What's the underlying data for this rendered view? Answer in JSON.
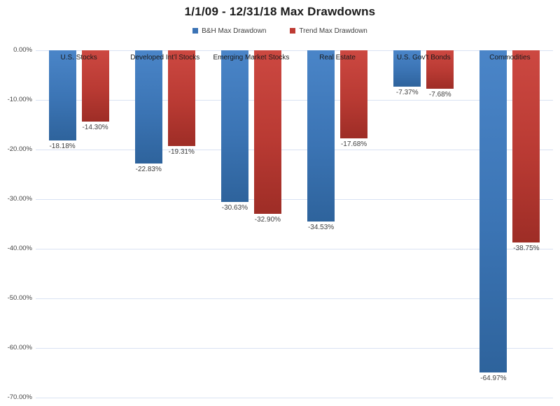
{
  "title": "1/1/09 - 12/31/18 Max Drawdowns",
  "legend": [
    {
      "label": "B&H Max Drawdown",
      "color": "#3b73b5"
    },
    {
      "label": "Trend Max Drawdown",
      "color": "#be3b33"
    }
  ],
  "colors": {
    "blue_top": "#4a85c8",
    "blue_bottom": "#2e639c",
    "red_top": "#cc4841",
    "red_bottom": "#9e2d26",
    "gridline": "#d9e2f3",
    "label_text": "#404040"
  },
  "chart_data": {
    "type": "bar",
    "title": "1/1/09 - 12/31/18 Max Drawdowns",
    "categories": [
      "U.S. Stocks",
      "Developed Int’l Stocks",
      "Emerging Market Stocks",
      "Real Estate",
      "U.S. Gov’t Bonds",
      "Commodities"
    ],
    "series": [
      {
        "name": "B&H Max Drawdown",
        "values": [
          -18.18,
          -22.83,
          -30.63,
          -34.53,
          -7.37,
          -64.97
        ],
        "labels": [
          "-18.18%",
          "-22.83%",
          "-30.63%",
          "-34.53%",
          "-7.37%",
          "-64.97%"
        ]
      },
      {
        "name": "Trend Max Drawdown",
        "values": [
          -14.3,
          -19.31,
          -32.9,
          -17.68,
          -7.68,
          -38.75
        ],
        "labels": [
          "-14.30%",
          "-19.31%",
          "-32.90%",
          "-17.68%",
          "-7.68%",
          "-38.75%"
        ]
      }
    ],
    "y_axis": {
      "ticks": [
        "0.00%",
        "-10.00%",
        "-20.00%",
        "-30.00%",
        "-40.00%",
        "-50.00%",
        "-60.00%",
        "-70.00%"
      ],
      "min": -70,
      "max": 0,
      "step": 10
    },
    "grid": true,
    "legend_position": "top",
    "value_labels": "below-bar",
    "category_labels": "top-inside-plot"
  }
}
